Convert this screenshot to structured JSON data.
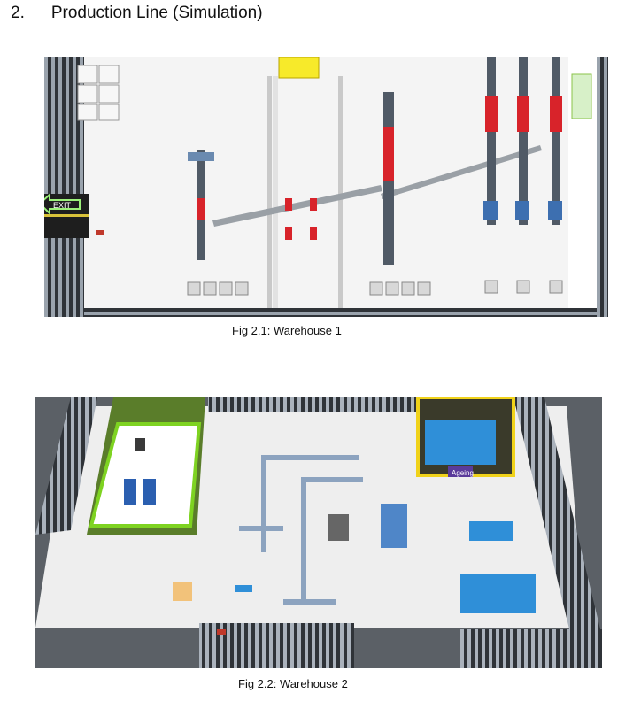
{
  "heading": {
    "number": "2.",
    "title": "Production Line (Simulation)"
  },
  "figure1": {
    "caption": "Fig 2.1: Warehouse 1",
    "exit_sign": "EXIT"
  },
  "figure2": {
    "caption": "Fig 2.2: Warehouse 2",
    "zone_label": "Ageing"
  },
  "colors": {
    "conveyor_red": "#d8232a",
    "machine_blue": "#2f8fd8",
    "floor": "#f2f2f2",
    "wall": "#3c4046",
    "green_border": "#7ed321"
  }
}
